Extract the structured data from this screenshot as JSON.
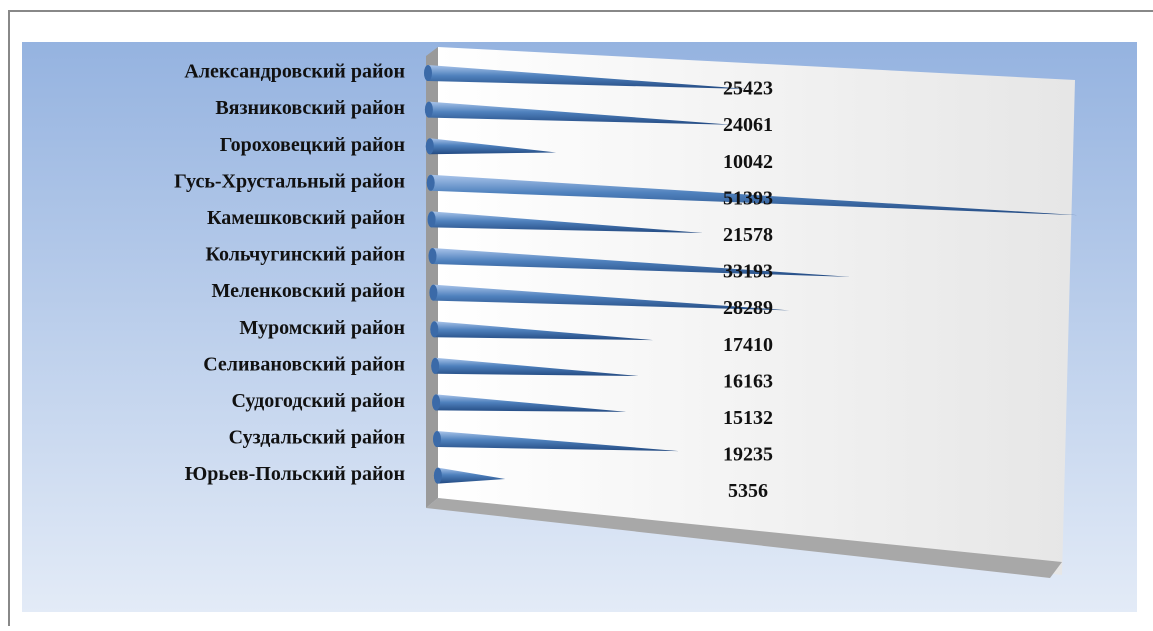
{
  "chart_data": {
    "type": "cone-bar",
    "categories": [
      "Александровский район",
      "Вязниковский район",
      "Гороховецкий район",
      "Гусь-Хрустальный район",
      "Камешковский район",
      "Кольчугинский район",
      "Меленковский район",
      "Муромский район",
      "Селивановский район",
      "Судогодский район",
      "Суздальский район",
      "Юрьев-Польский район"
    ],
    "values": [
      25423,
      24061,
      10042,
      51393,
      21578,
      33193,
      28289,
      17410,
      16163,
      15132,
      19235,
      5356
    ],
    "color": "#4f81bd"
  }
}
